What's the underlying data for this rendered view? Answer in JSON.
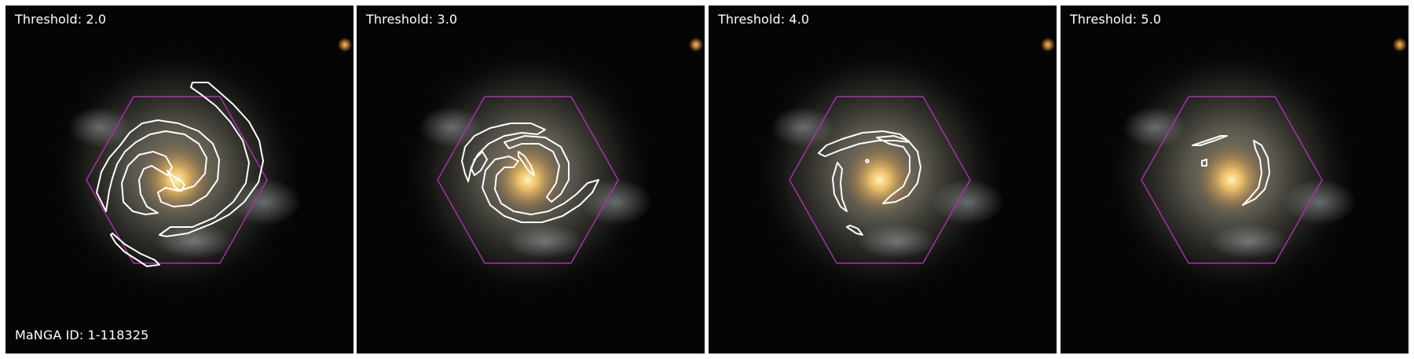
{
  "panels": [
    {
      "threshold_label": "Threshold: 2.0"
    },
    {
      "threshold_label": "Threshold: 3.0"
    },
    {
      "threshold_label": "Threshold: 4.0"
    },
    {
      "threshold_label": "Threshold: 5.0"
    }
  ],
  "manga_id_label": "MaNGA ID: 1-118325",
  "colors": {
    "hexagon": "#b030b0",
    "contour": "#ffffff",
    "background": "#050505",
    "core": "#f4c46a"
  }
}
